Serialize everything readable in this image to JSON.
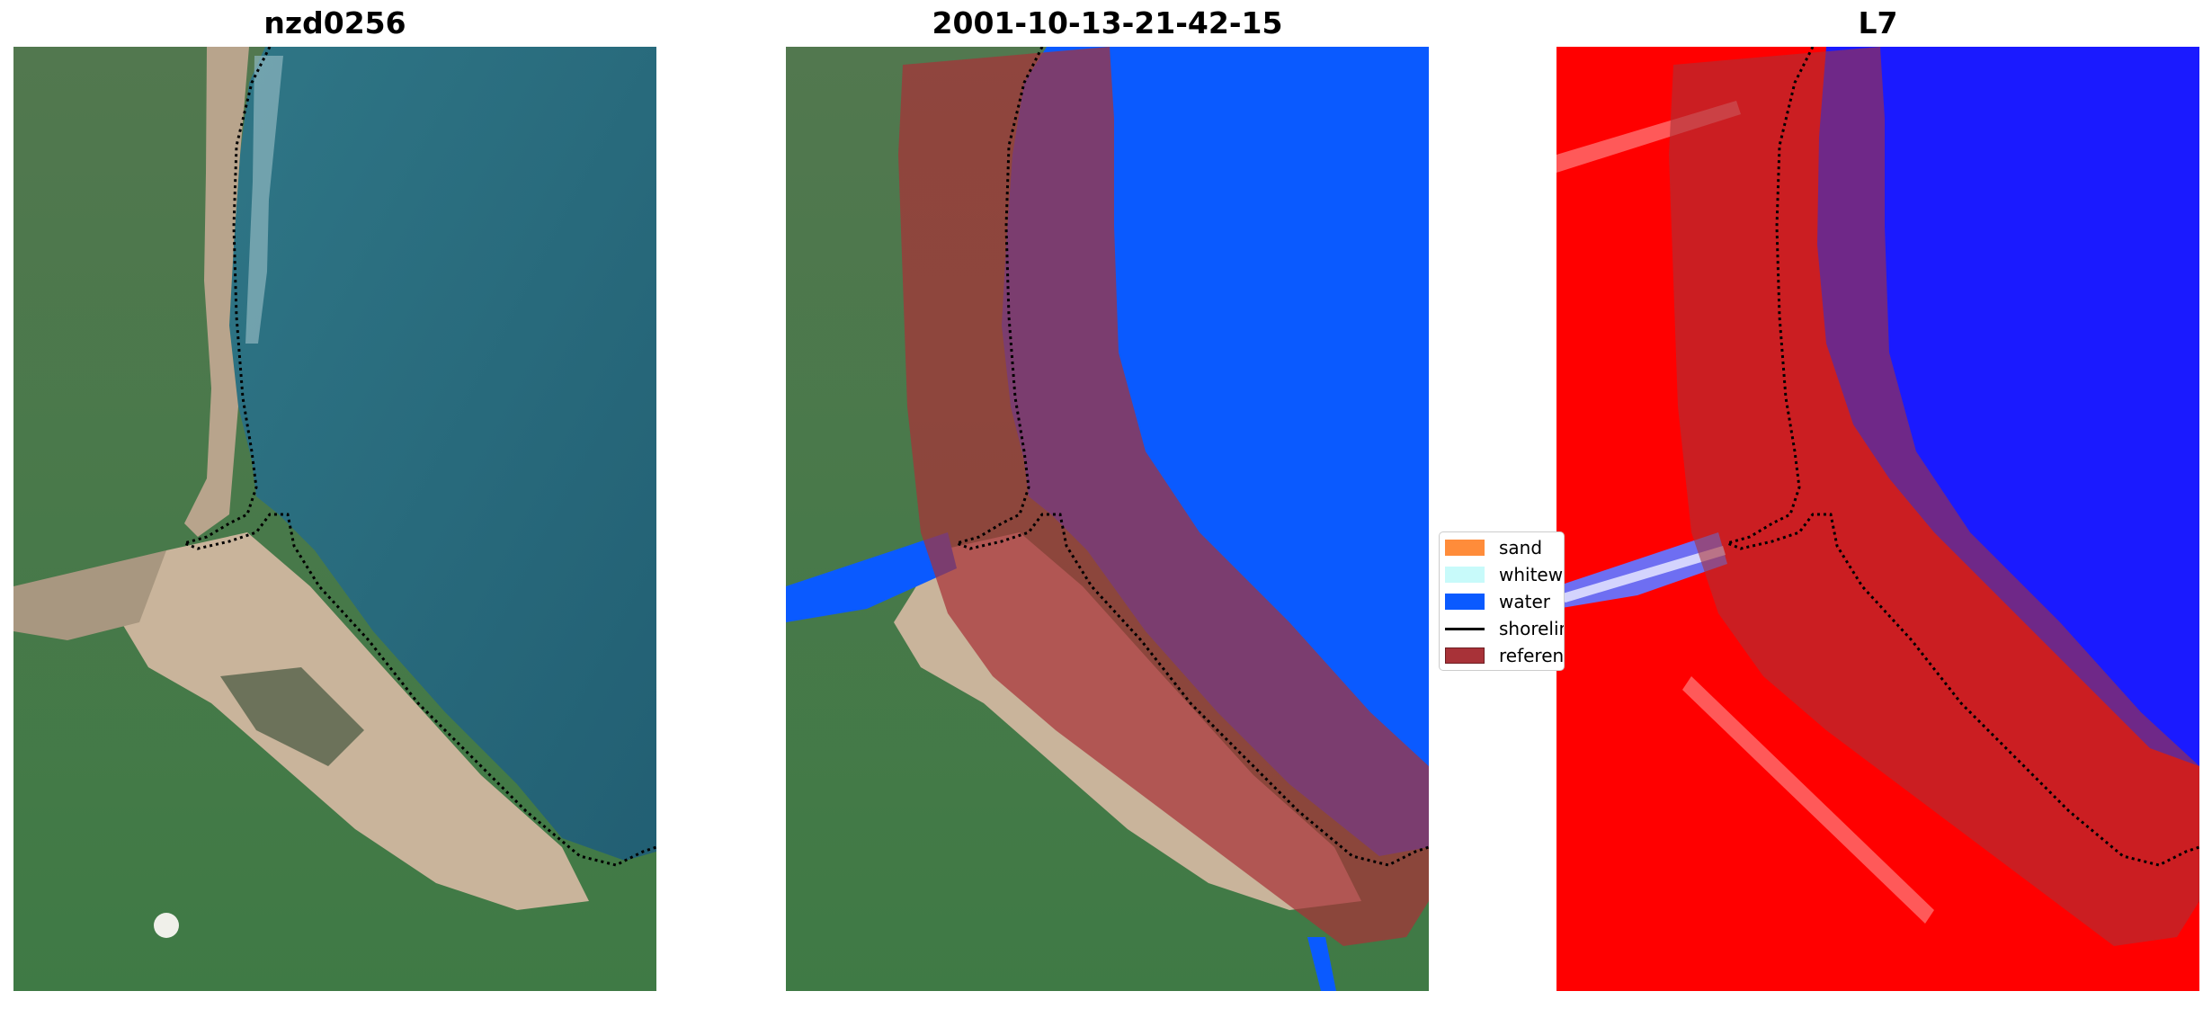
{
  "panels": {
    "rgb": {
      "title": "nzd0256"
    },
    "classified": {
      "title": "2001-10-13-21-42-15"
    },
    "index": {
      "title": "L7"
    }
  },
  "legend": {
    "items": [
      {
        "label": "sand",
        "color": "#ff8c3a",
        "kind": "patch"
      },
      {
        "label": "whitewater",
        "color": "#c8fafa",
        "kind": "patch"
      },
      {
        "label": "water",
        "color": "#0a5aff",
        "kind": "patch"
      },
      {
        "label": "shoreline",
        "color": "#000000",
        "kind": "line"
      },
      {
        "label": "reference shoreline buffer",
        "color": "#a83238",
        "kind": "patch"
      }
    ]
  },
  "colors": {
    "water_class": "#0a5aff",
    "buffer_overlay": "#a83238",
    "index_land": "#ff0000",
    "index_water": "#1a1aff",
    "sea_rgb": "#2b6f7f",
    "land_rgb": "#4c7d4c",
    "sand_rgb": "#c9b49b"
  }
}
